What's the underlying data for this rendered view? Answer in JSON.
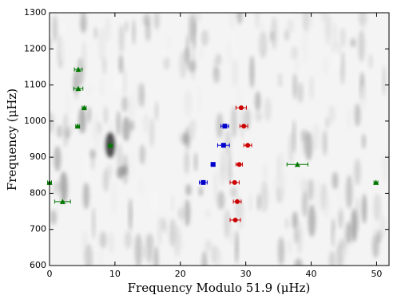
{
  "chart_data": {
    "type": "scatter",
    "x_label": "Frequency Modulo 51.9 (μHz)",
    "y_label": "Frequency (μHz)",
    "xlim": [
      0,
      51.9
    ],
    "ylim": [
      600,
      1300
    ],
    "xticks": [
      0,
      10,
      20,
      30,
      40,
      50
    ],
    "yticks": [
      600,
      700,
      800,
      900,
      1000,
      1100,
      1200,
      1300
    ],
    "series": [
      {
        "marker": "circle",
        "color": "#cc0000",
        "x": [
          29.3,
          29.7,
          30.3,
          29.0,
          28.3,
          28.7,
          28.4
        ],
        "values": [
          1037,
          986,
          933,
          880,
          830,
          777,
          726
        ],
        "xerr": [
          0.8,
          0.6,
          0.6,
          0.5,
          0.7,
          0.6,
          0.8
        ]
      },
      {
        "marker": "square",
        "color": "#0000cc",
        "x": [
          26.8,
          26.6,
          25.0,
          23.5
        ],
        "values": [
          986,
          933,
          880,
          830
        ],
        "xerr": [
          0.6,
          0.9,
          0.3,
          0.6
        ]
      },
      {
        "marker": "triangle",
        "color": "#007700",
        "x": [
          4.4,
          4.4,
          5.3,
          4.3,
          9.3,
          37.9,
          49.9,
          2.0,
          0
        ],
        "values": [
          1143,
          1090,
          1037,
          986,
          933,
          880,
          830,
          777,
          830
        ],
        "xerr": [
          0.6,
          0.7,
          0.3,
          0.3,
          0.3,
          1.6,
          0.3,
          1.2,
          0.3
        ]
      }
    ]
  }
}
